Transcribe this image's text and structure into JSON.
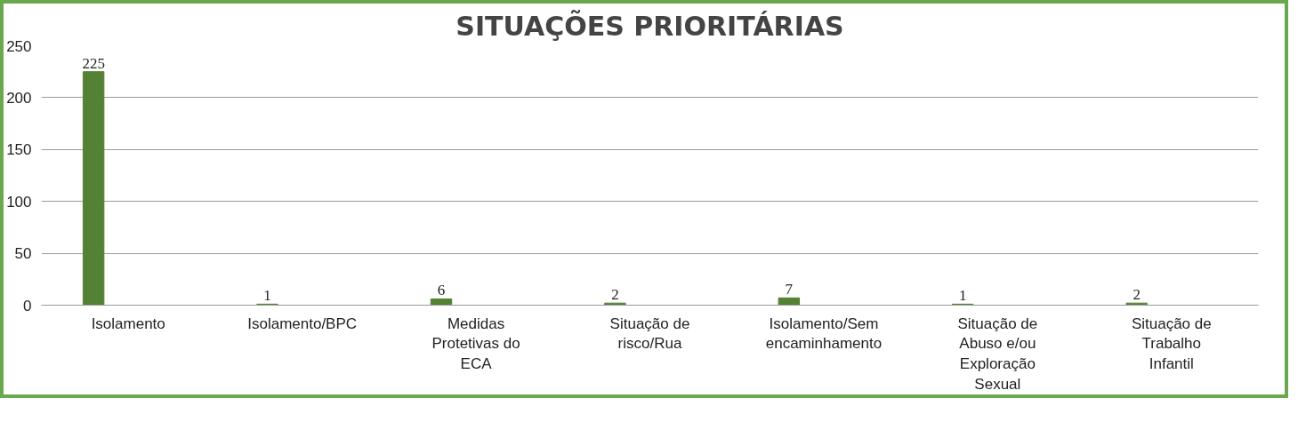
{
  "chart_data": {
    "type": "bar",
    "title": "SITUAÇÕES PRIORITÁRIAS",
    "categories": [
      "Isolamento",
      "Isolamento/BPC",
      "Medidas Protetivas do ECA",
      "Situação de risco/Rua",
      "Isolamento/Sem encaminhamento",
      "Situação de Abuso e/ou Exploração Sexual",
      "Situação de Trabalho Infantil"
    ],
    "values": [
      225,
      1,
      6,
      2,
      7,
      1,
      2
    ],
    "color": "#548235",
    "ylim": [
      0,
      250
    ],
    "yticks": [
      0,
      50,
      100,
      150,
      200,
      250
    ],
    "grid": "y",
    "data_labels": true
  }
}
